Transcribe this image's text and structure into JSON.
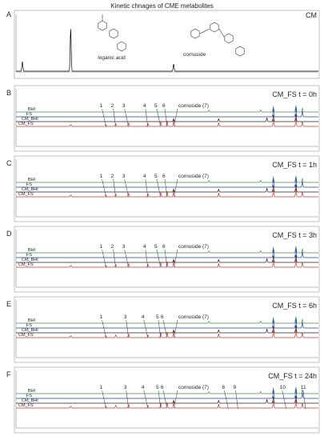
{
  "figure_title": "Kinetic chnages of CME metabolites",
  "chart_data": [
    {
      "type": "line",
      "panel": "A",
      "condition": "CM",
      "compounds": [
        {
          "name": "loganic acid",
          "rt": 17
        },
        {
          "name": "cornuside",
          "rt": 49
        }
      ],
      "series": [
        {
          "name": "CM",
          "color": "#000000",
          "peaks": [
            [
              2,
              0.8
            ],
            [
              17,
              3.6
            ],
            [
              49,
              0.6
            ]
          ]
        }
      ]
    },
    {
      "type": "line",
      "panel": "B",
      "condition": "CM_FS t = 0h",
      "trace_labels": [
        "BHI",
        "FS",
        "CM_BHI",
        "CM_FS"
      ],
      "peak_labels": [
        {
          "text": "1",
          "rt": 28
        },
        {
          "text": "2",
          "rt": 31
        },
        {
          "text": "3",
          "rt": 35
        },
        {
          "text": "4",
          "rt": 41
        },
        {
          "text": "5",
          "rt": 45
        },
        {
          "text": "6",
          "rt": 47
        },
        {
          "text": "cornuside (7)",
          "rt": 49
        }
      ]
    },
    {
      "type": "line",
      "panel": "C",
      "condition": "CM_FS t = 1h",
      "trace_labels": [
        "BHI",
        "FS",
        "CM_BHI",
        "CM_FS"
      ],
      "peak_labels": [
        {
          "text": "1",
          "rt": 28
        },
        {
          "text": "2",
          "rt": 31
        },
        {
          "text": "3",
          "rt": 35
        },
        {
          "text": "4",
          "rt": 41
        },
        {
          "text": "5",
          "rt": 45
        },
        {
          "text": "6",
          "rt": 47
        },
        {
          "text": "cornuside (7)",
          "rt": 49
        }
      ]
    },
    {
      "type": "line",
      "panel": "D",
      "condition": "CM_FS t = 3h",
      "trace_labels": [
        "BHI",
        "FS",
        "CM_BHI",
        "CM_FS"
      ],
      "peak_labels": [
        {
          "text": "1",
          "rt": 28
        },
        {
          "text": "2",
          "rt": 31
        },
        {
          "text": "3",
          "rt": 35
        },
        {
          "text": "4",
          "rt": 41
        },
        {
          "text": "5",
          "rt": 45
        },
        {
          "text": "6",
          "rt": 47
        },
        {
          "text": "cornuside (7)",
          "rt": 49
        }
      ]
    },
    {
      "type": "line",
      "panel": "E",
      "condition": "CM_FS t = 6h",
      "trace_labels": [
        "BHI",
        "FS",
        "CM_BHI",
        "CM_FS"
      ],
      "peak_labels": [
        {
          "text": "1",
          "rt": 28
        },
        {
          "text": "3",
          "rt": 35
        },
        {
          "text": "4",
          "rt": 41
        },
        {
          "text": "5",
          "rt": 45
        },
        {
          "text": "6",
          "rt": 47
        },
        {
          "text": "cornuside (7)",
          "rt": 49
        }
      ]
    },
    {
      "type": "line",
      "panel": "F",
      "condition": "CM_FS t = 24h",
      "trace_labels": [
        "BHI",
        "FS",
        "CM_BHI",
        "CM_FS"
      ],
      "peak_labels": [
        {
          "text": "1",
          "rt": 28
        },
        {
          "text": "3",
          "rt": 35
        },
        {
          "text": "4",
          "rt": 41
        },
        {
          "text": "5",
          "rt": 45
        },
        {
          "text": "6",
          "rt": 47
        },
        {
          "text": "cornuside (7)",
          "rt": 49
        },
        {
          "text": "8",
          "rt": 66
        },
        {
          "text": "9",
          "rt": 69
        },
        {
          "text": "10",
          "rt": 84
        },
        {
          "text": "11",
          "rt": 90
        }
      ]
    }
  ],
  "x_axis": {
    "min": 0,
    "max": 94
  },
  "trace_colors": {
    "BHI": "#3a9a3a",
    "FS": "#1f3fbf",
    "CM_BHI": "#222222",
    "CM_FS": "#d23030"
  }
}
